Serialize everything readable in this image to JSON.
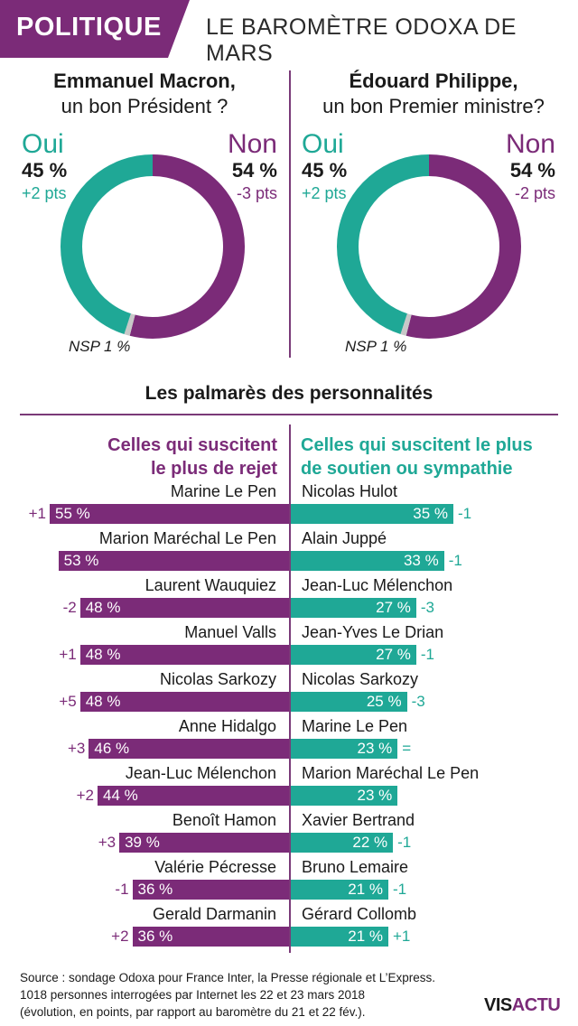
{
  "header": {
    "tag": "POLITIQUE",
    "title": "LE BAROMÈTRE ODOXA DE MARS"
  },
  "colors": {
    "purple": "#7b2b78",
    "teal": "#1fa896",
    "grey": "#c8c8c8"
  },
  "donuts": [
    {
      "question_line1": "Emmanuel Macron,",
      "question_line2": "un bon Président ?",
      "yes_label": "Oui",
      "yes_pct": "45 %",
      "yes_change": "+2 pts",
      "no_label": "Non",
      "no_pct": "54 %",
      "no_change": "-3 pts",
      "nsp": "NSP 1 %"
    },
    {
      "question_line1": "Édouard Philippe,",
      "question_line2": "un bon Premier ministre?",
      "yes_label": "Oui",
      "yes_pct": "45 %",
      "yes_change": "+2 pts",
      "no_label": "Non",
      "no_pct": "54 %",
      "no_change": "-2 pts",
      "nsp": "NSP 1 %"
    }
  ],
  "palmares_title": "Les palmarès des personnalités",
  "rejet_heading": [
    "Celles qui suscitent",
    "le plus de rejet"
  ],
  "soutien_heading": [
    "Celles qui suscitent le plus",
    "de soutien ou sympathie"
  ],
  "footer": [
    "Source : sondage Odoxa pour France Inter, la Presse régionale et L’Express.",
    "1018 personnes interrogées par Internet les 22 et 23 mars 2018",
    "(évolution, en points, par rapport au baromètre du 21 et 22 fév.)."
  ],
  "logo": {
    "part1": "VIS",
    "part2": "ACTU"
  },
  "chart_data": [
    {
      "type": "pie",
      "title": "Emmanuel Macron, un bon Président ?",
      "labels": [
        "Oui",
        "Non",
        "NSP"
      ],
      "values": [
        45,
        54,
        1
      ],
      "changes": [
        "+2 pts",
        "-3 pts",
        ""
      ]
    },
    {
      "type": "pie",
      "title": "Édouard Philippe, un bon Premier ministre?",
      "labels": [
        "Oui",
        "Non",
        "NSP"
      ],
      "values": [
        45,
        54,
        1
      ],
      "changes": [
        "+2 pts",
        "-2 pts",
        ""
      ]
    },
    {
      "type": "bar",
      "title": "Celles qui suscitent le plus de rejet",
      "categories": [
        "Marine Le Pen",
        "Marion Maréchal Le Pen",
        "Laurent Wauquiez",
        "Manuel Valls",
        "Nicolas Sarkozy",
        "Anne Hidalgo",
        "Jean-Luc Mélenchon",
        "Benoît Hamon",
        "Valérie Pécresse",
        "Gerald Darmanin"
      ],
      "values": [
        55,
        53,
        48,
        48,
        48,
        46,
        44,
        39,
        36,
        36
      ],
      "labels": [
        "55 %",
        "53 %",
        "48 %",
        "48 %",
        "48 %",
        "46 %",
        "44 %",
        "39 %",
        "36 %",
        "36 %"
      ],
      "changes": [
        "+1",
        "",
        "-2",
        "+1",
        "+5",
        "+3",
        "+2",
        "+3",
        "-1",
        "+2"
      ]
    },
    {
      "type": "bar",
      "title": "Celles qui suscitent le plus de soutien ou sympathie",
      "categories": [
        "Nicolas Hulot",
        "Alain Juppé",
        "Jean-Luc Mélenchon",
        "Jean-Yves Le Drian",
        "Nicolas Sarkozy",
        "Marine Le Pen",
        "Marion Maréchal Le Pen",
        "Xavier Bertrand",
        "Bruno Lemaire",
        "Gérard Collomb"
      ],
      "values": [
        35,
        33,
        27,
        27,
        25,
        23,
        23,
        22,
        21,
        21
      ],
      "labels": [
        "35 %",
        "33 %",
        "27 %",
        "27 %",
        "25 %",
        "23 %",
        "23 %",
        "22 %",
        "21 %",
        "21 %"
      ],
      "changes": [
        "-1",
        "-1",
        "-3",
        "-1",
        "-3",
        "=",
        "",
        "-1",
        "-1",
        "+1"
      ]
    }
  ]
}
